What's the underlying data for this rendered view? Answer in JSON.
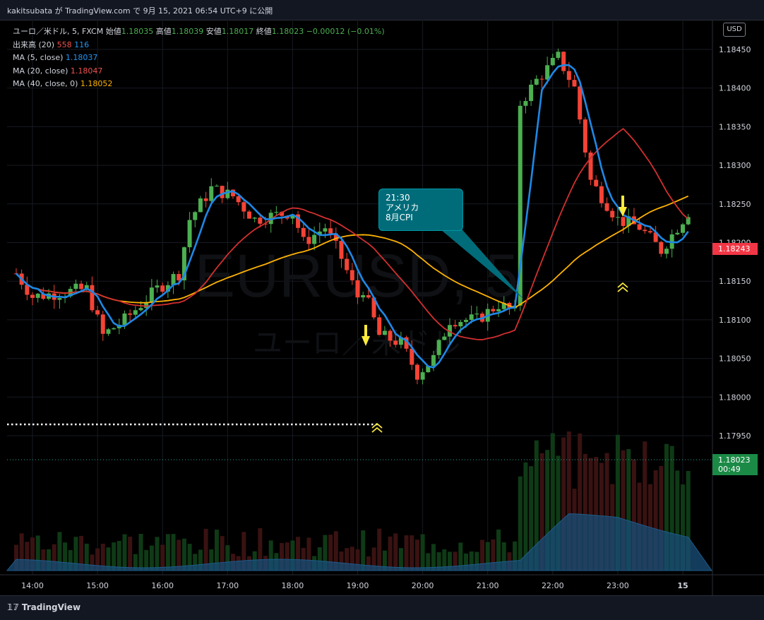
{
  "header": {
    "text": "kakitsubata が TradingView.com で 9月 15, 2021 06:54 UTC+9 に公開"
  },
  "legend": {
    "symbol": "ユーロ／米ドル, 5, FXCM",
    "open_label": "始値",
    "open": "1.18035",
    "high_label": "高値",
    "high": "1.18039",
    "low_label": "安値",
    "low": "1.18017",
    "close_label": "終値",
    "close": "1.18023",
    "change": "−0.00012 (−0.01%)",
    "volume_label": "出来高 (20)",
    "volume_value": "558",
    "volume_ma": "116",
    "ma5_label": "MA (5, close)",
    "ma5_value": "1.18037",
    "ma20_label": "MA (20, close)",
    "ma20_value": "1.18047",
    "ma40_label": "MA (40, close, 0)",
    "ma40_value": "1.18052"
  },
  "currency_button": "USD",
  "price_tags": {
    "current": "1.18243",
    "last_close": "1.18023",
    "countdown": "00:49"
  },
  "callout": {
    "line1": "21:30",
    "line2": "アメリカ",
    "line3": "8月CPI"
  },
  "watermark": {
    "line1": "EURUSD, 5",
    "line2": "ユーロ／米ドル"
  },
  "footer": {
    "logo": "TradingView"
  },
  "colors": {
    "up": "#4caf50",
    "down": "#f44336",
    "ma5": "#1e88e5",
    "ma20": "#d32f2f",
    "ma40": "#ffb300",
    "volume_area": "#1a4f7a"
  },
  "chart_data": {
    "type": "candlestick",
    "y_ticks": [
      "1.18450",
      "1.18400",
      "1.18350",
      "1.18300",
      "1.18250",
      "1.18200",
      "1.18150",
      "1.18100",
      "1.18050",
      "1.18000",
      "1.17950"
    ],
    "x_ticks": [
      "14:00",
      "15:00",
      "16:00",
      "17:00",
      "18:00",
      "19:00",
      "20:00",
      "21:00",
      "22:00",
      "23:00",
      "15"
    ],
    "ylim": [
      1.17905,
      1.18473
    ],
    "approx_close_path": [
      {
        "time": "13:45",
        "price": 1.1816
      },
      {
        "time": "14:00",
        "price": 1.1813
      },
      {
        "time": "14:50",
        "price": 1.1814
      },
      {
        "time": "15:05",
        "price": 1.1808
      },
      {
        "time": "15:25",
        "price": 1.181
      },
      {
        "time": "15:55",
        "price": 1.1814
      },
      {
        "time": "16:15",
        "price": 1.1816
      },
      {
        "time": "16:25",
        "price": 1.1823
      },
      {
        "time": "16:45",
        "price": 1.1827
      },
      {
        "time": "17:05",
        "price": 1.1826
      },
      {
        "time": "17:25",
        "price": 1.1823
      },
      {
        "time": "18:00",
        "price": 1.1824
      },
      {
        "time": "18:10",
        "price": 1.182
      },
      {
        "time": "18:30",
        "price": 1.1822
      },
      {
        "time": "18:45",
        "price": 1.1818
      },
      {
        "time": "19:00",
        "price": 1.1813
      },
      {
        "time": "19:05",
        "price": 1.1814
      },
      {
        "time": "19:20",
        "price": 1.1808
      },
      {
        "time": "19:40",
        "price": 1.1807
      },
      {
        "time": "19:55",
        "price": 1.1803
      },
      {
        "time": "20:10",
        "price": 1.1805
      },
      {
        "time": "20:25",
        "price": 1.181
      },
      {
        "time": "20:50",
        "price": 1.181
      },
      {
        "time": "21:10",
        "price": 1.1812
      },
      {
        "time": "21:25",
        "price": 1.1811
      },
      {
        "time": "21:30",
        "price": 1.1838
      },
      {
        "time": "21:45",
        "price": 1.1841
      },
      {
        "time": "22:05",
        "price": 1.1844
      },
      {
        "time": "22:20",
        "price": 1.184
      },
      {
        "time": "22:35",
        "price": 1.1828
      },
      {
        "time": "23:00",
        "price": 1.1823
      },
      {
        "time": "23:20",
        "price": 1.1822
      },
      {
        "time": "23:40",
        "price": 1.1819
      },
      {
        "time": "23:55",
        "price": 1.1822
      },
      {
        "time": "00:05",
        "price": 1.1824
      }
    ],
    "series": [
      {
        "name": "MA (5, close)"
      },
      {
        "name": "MA (20, close)"
      },
      {
        "name": "MA (40, close, 0)"
      },
      {
        "name": "出来高 (20)"
      }
    ],
    "annotations": [
      {
        "type": "horizontal-dotted-line",
        "price": 1.1806
      },
      {
        "type": "arrow-down",
        "time": "19:05"
      },
      {
        "type": "arrow-down",
        "time": "23:00"
      },
      {
        "type": "double-chevron-up",
        "time": "19:25"
      },
      {
        "type": "double-chevron-up",
        "time": "23:00"
      }
    ]
  }
}
